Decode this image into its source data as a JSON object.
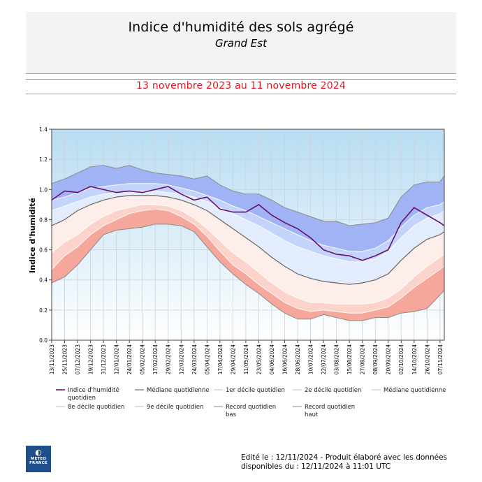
{
  "header": {
    "title": "Indice d'humidité des sols agrégé",
    "subtitle": "Grand Est",
    "period": "13 novembre 2023 au 11 novembre 2024"
  },
  "footer": {
    "logo_text": "METEO FRANCE",
    "edited_line1": "Edité le : 12/11/2024 - Produit élaboré avec les données",
    "edited_line2": "disponibles du : 12/11/2024 à 11:01 UTC"
  },
  "colors": {
    "series": "#6a0f6a",
    "median": "#666666",
    "decile_lines": "#8a8a8a",
    "low_band_dark": "#f4a79a",
    "low_band_mid": "#fbd3ca",
    "low_band_light": "#fdeee9",
    "high_band_light": "#e3ecfc",
    "high_band_mid": "#c3d4fa",
    "high_band_dark": "#9fb3f5"
  },
  "chart_data": {
    "type": "line",
    "ylabel": "Indice d'humidité",
    "xlabel": "",
    "ylim": [
      0,
      1.4
    ],
    "yticks": [
      "0.0",
      "0.2",
      "0.4",
      "0.6",
      "0.8",
      "1.0",
      "1.2",
      "1.4"
    ],
    "grid": true,
    "xticks": [
      "13/11/2023",
      "25/11/2023",
      "07/12/2023",
      "19/12/2023",
      "31/12/2023",
      "12/01/2024",
      "24/01/2024",
      "05/02/2024",
      "17/02/2024",
      "29/02/2024",
      "12/03/2024",
      "24/03/2024",
      "05/04/2024",
      "17/04/2024",
      "29/04/2024",
      "11/05/2024",
      "23/05/2024",
      "04/06/2024",
      "16/06/2024",
      "28/06/2024",
      "10/07/2024",
      "22/07/2024",
      "03/08/2024",
      "15/08/2024",
      "27/08/2024",
      "08/09/2024",
      "20/09/2024",
      "02/10/2024",
      "14/10/2024",
      "26/10/2024",
      "07/11/2024"
    ],
    "x": [
      "13/11/2023",
      "25/11/2023",
      "07/12/2023",
      "19/12/2023",
      "31/12/2023",
      "12/01/2024",
      "24/01/2024",
      "05/02/2024",
      "17/02/2024",
      "29/02/2024",
      "12/03/2024",
      "24/03/2024",
      "05/04/2024",
      "17/04/2024",
      "29/04/2024",
      "11/05/2024",
      "23/05/2024",
      "04/06/2024",
      "16/06/2024",
      "28/06/2024",
      "10/07/2024",
      "22/07/2024",
      "03/08/2024",
      "15/08/2024",
      "27/08/2024",
      "08/09/2024",
      "20/09/2024",
      "02/10/2024",
      "14/10/2024",
      "26/10/2024",
      "07/11/2024",
      "11/11/2024"
    ],
    "series": [
      {
        "name": "Indice d'humidité quotidien",
        "values": [
          0.93,
          0.99,
          0.98,
          1.02,
          1.0,
          0.98,
          0.99,
          0.98,
          1.0,
          1.02,
          0.97,
          0.93,
          0.95,
          0.87,
          0.85,
          0.85,
          0.9,
          0.83,
          0.78,
          0.74,
          0.68,
          0.6,
          0.57,
          0.56,
          0.53,
          0.56,
          0.6,
          0.78,
          0.88,
          0.83,
          0.78,
          0.76
        ]
      },
      {
        "name": "Record quotidien bas",
        "values": [
          0.38,
          0.42,
          0.5,
          0.6,
          0.7,
          0.73,
          0.74,
          0.75,
          0.77,
          0.77,
          0.76,
          0.72,
          0.62,
          0.52,
          0.44,
          0.37,
          0.31,
          0.24,
          0.18,
          0.14,
          0.14,
          0.17,
          0.15,
          0.13,
          0.13,
          0.15,
          0.15,
          0.18,
          0.19,
          0.21,
          0.3,
          0.33
        ]
      },
      {
        "name": "1er décile quotidien",
        "values": [
          0.47,
          0.56,
          0.62,
          0.7,
          0.76,
          0.8,
          0.84,
          0.86,
          0.87,
          0.86,
          0.82,
          0.77,
          0.69,
          0.59,
          0.5,
          0.44,
          0.37,
          0.31,
          0.25,
          0.21,
          0.19,
          0.2,
          0.19,
          0.18,
          0.18,
          0.2,
          0.22,
          0.28,
          0.35,
          0.41,
          0.47,
          0.49
        ]
      },
      {
        "name": "2e décile quotidien",
        "values": [
          0.58,
          0.65,
          0.7,
          0.77,
          0.82,
          0.86,
          0.88,
          0.9,
          0.9,
          0.89,
          0.86,
          0.81,
          0.74,
          0.66,
          0.58,
          0.52,
          0.45,
          0.38,
          0.32,
          0.28,
          0.25,
          0.25,
          0.24,
          0.24,
          0.24,
          0.25,
          0.28,
          0.34,
          0.42,
          0.49,
          0.55,
          0.57
        ]
      },
      {
        "name": "Médiane quotidienne",
        "values": [
          0.76,
          0.8,
          0.86,
          0.9,
          0.93,
          0.95,
          0.96,
          0.96,
          0.96,
          0.95,
          0.93,
          0.9,
          0.86,
          0.8,
          0.74,
          0.68,
          0.62,
          0.55,
          0.49,
          0.44,
          0.41,
          0.39,
          0.38,
          0.37,
          0.38,
          0.4,
          0.44,
          0.53,
          0.61,
          0.67,
          0.7,
          0.72
        ]
      },
      {
        "name": "8e décile quotidien",
        "values": [
          0.86,
          0.89,
          0.92,
          0.95,
          0.97,
          0.98,
          0.99,
          0.99,
          0.99,
          0.98,
          0.97,
          0.95,
          0.92,
          0.88,
          0.84,
          0.8,
          0.76,
          0.71,
          0.66,
          0.62,
          0.59,
          0.56,
          0.54,
          0.52,
          0.52,
          0.54,
          0.59,
          0.68,
          0.76,
          0.81,
          0.84,
          0.86
        ]
      },
      {
        "name": "9e décile quotidien",
        "values": [
          0.93,
          0.95,
          0.98,
          1.01,
          1.02,
          1.03,
          1.04,
          1.04,
          1.04,
          1.03,
          1.01,
          0.99,
          0.96,
          0.93,
          0.89,
          0.86,
          0.82,
          0.78,
          0.74,
          0.7,
          0.66,
          0.63,
          0.61,
          0.59,
          0.59,
          0.61,
          0.66,
          0.75,
          0.83,
          0.88,
          0.9,
          0.92
        ]
      },
      {
        "name": "Record quotidien haut",
        "values": [
          1.04,
          1.07,
          1.11,
          1.15,
          1.16,
          1.14,
          1.16,
          1.13,
          1.11,
          1.1,
          1.09,
          1.07,
          1.09,
          1.03,
          0.99,
          0.97,
          0.97,
          0.93,
          0.88,
          0.85,
          0.82,
          0.79,
          0.79,
          0.76,
          0.77,
          0.78,
          0.81,
          0.95,
          1.03,
          1.05,
          1.05,
          1.09
        ]
      }
    ],
    "legend": [
      {
        "label": "Indice d'humidité quotidien",
        "color": "#6a0f6a",
        "width": 1.6
      },
      {
        "label": "Médiane quotidienne",
        "color": "#666666",
        "width": 1.2
      },
      {
        "label": "1er décile quotidien",
        "color": "#bdbdbd",
        "width": 1
      },
      {
        "label": "2e décile quotidien",
        "color": "#bdbdbd",
        "width": 1
      },
      {
        "label": "Médiane quotidienne",
        "color": "#bdbdbd",
        "width": 1
      },
      {
        "label": "8e décile quotidien",
        "color": "#bdbdbd",
        "width": 1
      },
      {
        "label": "9e décile quotidien",
        "color": "#bdbdbd",
        "width": 1
      },
      {
        "label": "Record quotidien bas",
        "color": "#8a8a8a",
        "width": 1
      },
      {
        "label": "Record quotidien haut",
        "color": "#8a8a8a",
        "width": 1
      }
    ]
  }
}
